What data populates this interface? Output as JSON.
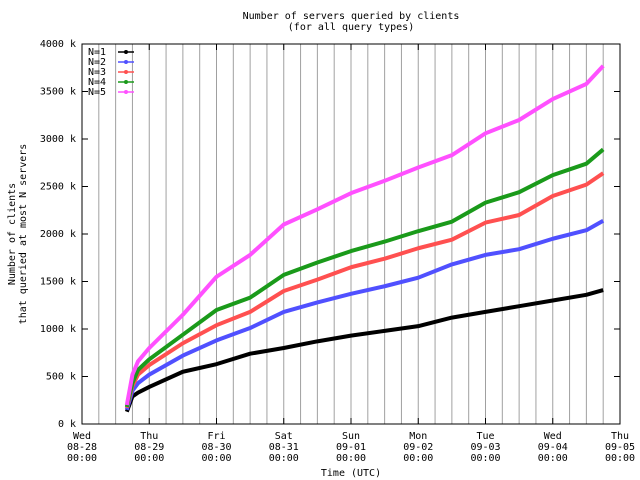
{
  "chart_data": {
    "type": "line",
    "title": "Number of servers queried by clients",
    "subtitle": "(for all query types)",
    "x_label": "Time (UTC)",
    "y_label": [
      "Number of clients",
      "that queried at most N servers"
    ],
    "x": [
      "08-28 16:00",
      "08-28 18:00",
      "08-28 20:00",
      "08-29 00:00",
      "08-29 12:00",
      "08-30 00:00",
      "08-30 12:00",
      "08-31 00:00",
      "08-31 12:00",
      "09-01 00:00",
      "09-01 12:00",
      "09-02 00:00",
      "09-02 12:00",
      "09-03 00:00",
      "09-03 12:00",
      "09-04 00:00",
      "09-04 12:00",
      "09-04 18:00"
    ],
    "series": [
      {
        "name": "N=1",
        "color": "#000000",
        "values": [
          130,
          290,
          330,
          390,
          550,
          630,
          740,
          800,
          870,
          930,
          980,
          1030,
          1120,
          1180,
          1240,
          1300,
          1360,
          1410
        ]
      },
      {
        "name": "N=2",
        "color": "#5050ff",
        "values": [
          150,
          350,
          430,
          520,
          720,
          880,
          1010,
          1180,
          1280,
          1370,
          1450,
          1540,
          1680,
          1780,
          1840,
          1950,
          2040,
          2140
        ]
      },
      {
        "name": "N=3",
        "color": "#ff5050",
        "values": [
          170,
          400,
          520,
          620,
          850,
          1040,
          1180,
          1400,
          1520,
          1650,
          1740,
          1850,
          1940,
          2120,
          2200,
          2400,
          2520,
          2640
        ]
      },
      {
        "name": "N=4",
        "color": "#1a9a1a",
        "values": [
          180,
          430,
          570,
          680,
          940,
          1200,
          1330,
          1570,
          1700,
          1820,
          1920,
          2030,
          2130,
          2330,
          2440,
          2620,
          2740,
          2890
        ]
      },
      {
        "name": "N=5",
        "color": "#ff50ff",
        "values": [
          200,
          520,
          660,
          800,
          1150,
          1550,
          1780,
          2100,
          2260,
          2430,
          2560,
          2700,
          2830,
          3060,
          3200,
          3420,
          3580,
          3770
        ]
      }
    ],
    "xlim": [
      "08-28 00:00",
      "09-05 00:00"
    ],
    "xticks": [
      {
        "value": "08-28 00:00",
        "label": "Wed 08-28 00:00"
      },
      {
        "value": "08-29 00:00",
        "label": "Thu 08-29 00:00"
      },
      {
        "value": "08-30 00:00",
        "label": "Fri 08-30 00:00"
      },
      {
        "value": "08-31 00:00",
        "label": "Sat 08-31 00:00"
      },
      {
        "value": "09-01 00:00",
        "label": "Sun 09-01 00:00"
      },
      {
        "value": "09-02 00:00",
        "label": "Mon 09-02 00:00"
      },
      {
        "value": "09-03 00:00",
        "label": "Tue 09-03 00:00"
      },
      {
        "value": "09-04 00:00",
        "label": "Wed 09-04 00:00"
      },
      {
        "value": "09-05 00:00",
        "label": "Thu 09-05 00:00"
      }
    ],
    "minor_grid_hours": 6,
    "ylim": [
      0,
      4000
    ],
    "yticks": [
      {
        "value": 0,
        "label": "0 k"
      },
      {
        "value": 500,
        "label": "500 k"
      },
      {
        "value": 1000,
        "label": "1000 k"
      },
      {
        "value": 1500,
        "label": "1500 k"
      },
      {
        "value": 2000,
        "label": "2000 k"
      },
      {
        "value": 2500,
        "label": "2500 k"
      },
      {
        "value": 3000,
        "label": "3000 k"
      },
      {
        "value": 3500,
        "label": "3500 k"
      },
      {
        "value": 4000,
        "label": "4000 k"
      }
    ],
    "grid": true,
    "legend": "top-left"
  }
}
